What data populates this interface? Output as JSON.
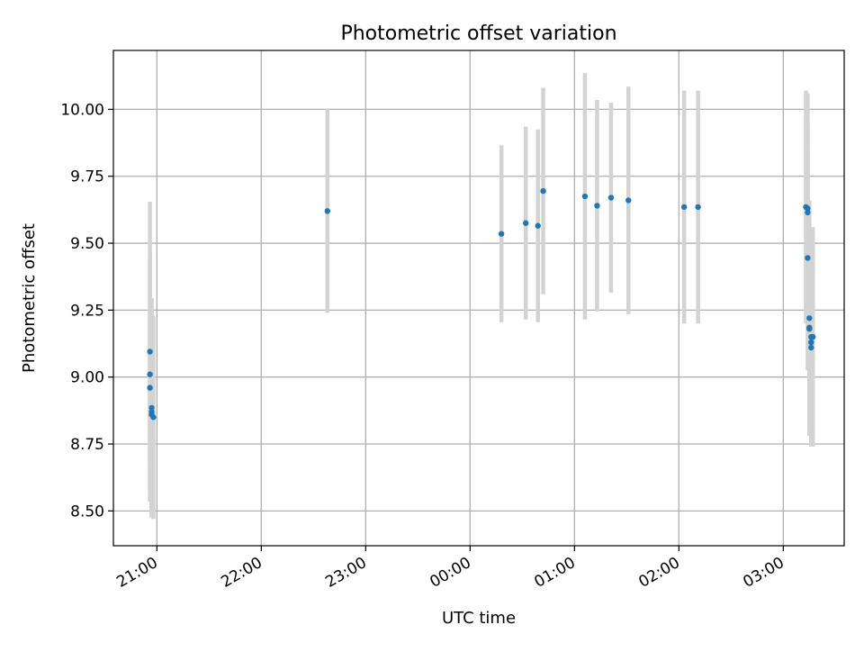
{
  "chart_data": {
    "type": "scatter",
    "title": "Photometric offset variation",
    "xlabel": "UTC time",
    "ylabel": "Photometric offset",
    "x_is_time": true,
    "xlim": [
      "20:35",
      "03:35"
    ],
    "ylim": [
      8.37,
      10.22
    ],
    "xticks": [
      "21:00",
      "22:00",
      "23:00",
      "00:00",
      "01:00",
      "02:00",
      "03:00"
    ],
    "yticks": [
      "8.50",
      "8.75",
      "9.00",
      "9.25",
      "9.50",
      "9.75",
      "10.00"
    ],
    "ytick_values": [
      8.5,
      8.75,
      9.0,
      9.25,
      9.5,
      9.75,
      10.0
    ],
    "grid": true,
    "legend": "none",
    "colors": {
      "marker": "#1f77b4",
      "errorbar": "#d3d3d3",
      "grid": "#b0b0b0"
    },
    "series": [
      {
        "points": [
          {
            "x": "20:56",
            "y": 9.095,
            "err": 0.56
          },
          {
            "x": "20:56",
            "y": 9.01,
            "err": 0.44
          },
          {
            "x": "20:56",
            "y": 8.96,
            "err": 0.29
          },
          {
            "x": "20:57",
            "y": 8.885,
            "err": 0.41
          },
          {
            "x": "20:57",
            "y": 8.87,
            "err": 0.39
          },
          {
            "x": "20:57",
            "y": 8.86,
            "err": 0.38
          },
          {
            "x": "20:58",
            "y": 8.85,
            "err": 0.38
          },
          {
            "x": "22:38",
            "y": 9.62,
            "err": 0.38
          },
          {
            "x": "00:18",
            "y": 9.535,
            "err": 0.33
          },
          {
            "x": "00:32",
            "y": 9.575,
            "err": 0.36
          },
          {
            "x": "00:39",
            "y": 9.565,
            "err": 0.36
          },
          {
            "x": "00:42",
            "y": 9.695,
            "err": 0.385
          },
          {
            "x": "01:06",
            "y": 9.675,
            "err": 0.46
          },
          {
            "x": "01:13",
            "y": 9.64,
            "err": 0.395
          },
          {
            "x": "01:21",
            "y": 9.67,
            "err": 0.355
          },
          {
            "x": "01:31",
            "y": 9.66,
            "err": 0.425
          },
          {
            "x": "02:03",
            "y": 9.635,
            "err": 0.435
          },
          {
            "x": "02:11",
            "y": 9.635,
            "err": 0.435
          },
          {
            "x": "03:13",
            "y": 9.635,
            "err": 0.435
          },
          {
            "x": "03:14",
            "y": 9.63,
            "err": 0.43
          },
          {
            "x": "03:14",
            "y": 9.615,
            "err": 0.33
          },
          {
            "x": "03:14",
            "y": 9.445,
            "err": 0.42
          },
          {
            "x": "03:15",
            "y": 9.22,
            "err": 0.44
          },
          {
            "x": "03:15",
            "y": 9.185,
            "err": 0.37
          },
          {
            "x": "03:15",
            "y": 9.18,
            "err": 0.37
          },
          {
            "x": "03:16",
            "y": 9.15,
            "err": 0.37
          },
          {
            "x": "03:16",
            "y": 9.13,
            "err": 0.37
          },
          {
            "x": "03:16",
            "y": 9.11,
            "err": 0.37
          },
          {
            "x": "03:17",
            "y": 9.15,
            "err": 0.41
          }
        ]
      }
    ]
  }
}
